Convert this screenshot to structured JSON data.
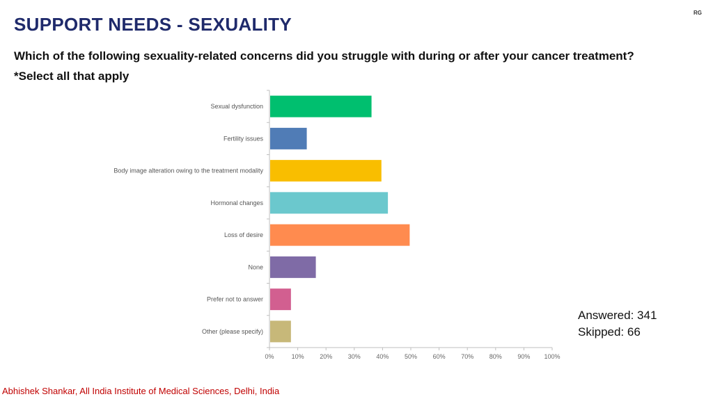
{
  "slide": {
    "title": "SUPPORT NEEDS - SEXUALITY",
    "corner_mark": "RG",
    "question": "Which of the following sexuality-related concerns did you struggle with during or after your cancer treatment?",
    "instruction": "*Select all that apply",
    "answered": "Answered: 341",
    "skipped": "Skipped: 66",
    "footer": "Abhishek Shankar, All India Institute of Medical Sciences, Delhi, India"
  },
  "chart_data": {
    "type": "bar",
    "orientation": "horizontal",
    "categories": [
      "Sexual dysfunction",
      "Fertility issues",
      "Body image alteration owing to the treatment modality",
      "Hormonal changes",
      "Loss of desire",
      "None",
      "Prefer not to answer",
      "Other (please specify)"
    ],
    "values": [
      36.1,
      13.2,
      39.6,
      41.9,
      49.6,
      16.4,
      7.6,
      7.6
    ],
    "colors": [
      "#00bf6f",
      "#507cb6",
      "#f9be00",
      "#6bc8cd",
      "#ff8b4f",
      "#7f6ba6",
      "#d25f90",
      "#c7b879"
    ],
    "xlim": [
      0,
      100
    ],
    "x_ticks": [
      "0%",
      "10%",
      "20%",
      "30%",
      "40%",
      "50%",
      "60%",
      "70%",
      "80%",
      "90%",
      "100%"
    ],
    "grid": false,
    "unit": "%"
  }
}
